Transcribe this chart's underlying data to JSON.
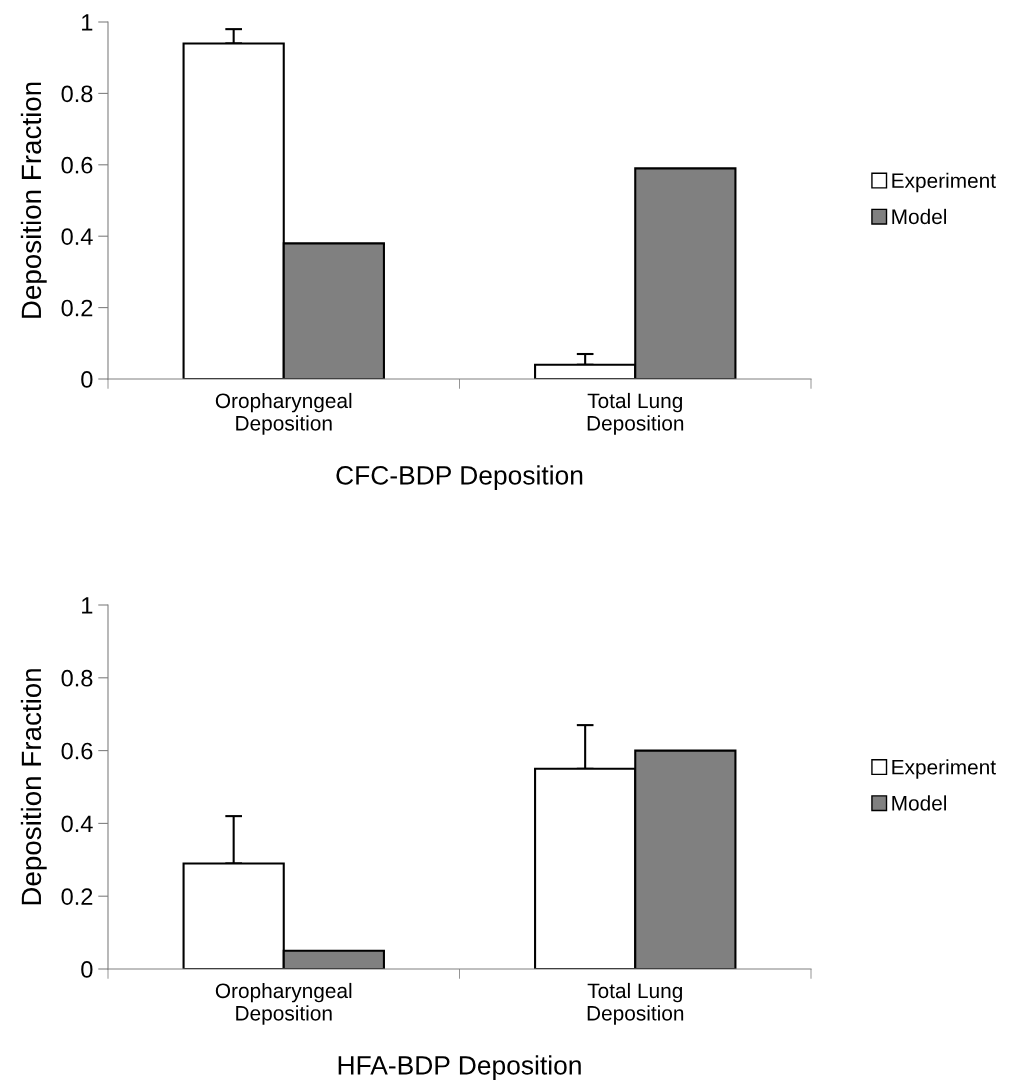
{
  "chart_data": [
    {
      "type": "bar",
      "xlabel": "CFC-BDP Deposition",
      "ylabel": "Deposition Fraction",
      "categories": [
        "Oropharyngeal\nDeposition",
        "Total Lung\nDeposition"
      ],
      "series": [
        {
          "name": "Experiment",
          "color": "#ffffff",
          "values": [
            0.94,
            0.04
          ],
          "errors": [
            [
              0.94,
              0.98
            ],
            [
              0.04,
              0.07
            ]
          ]
        },
        {
          "name": "Model",
          "color": "#808080",
          "values": [
            0.38,
            0.59
          ]
        }
      ],
      "ylim": [
        0,
        1
      ],
      "yticks": [
        0,
        0.2,
        0.4,
        0.6,
        0.8,
        1
      ],
      "grid": false,
      "legend": "right"
    },
    {
      "type": "bar",
      "xlabel": "HFA-BDP Deposition",
      "ylabel": "Deposition Fraction",
      "categories": [
        "Oropharyngeal\nDeposition",
        "Total Lung\nDeposition"
      ],
      "series": [
        {
          "name": "Experiment",
          "color": "#ffffff",
          "values": [
            0.29,
            0.55
          ],
          "errors": [
            [
              0.29,
              0.42
            ],
            [
              0.55,
              0.67
            ]
          ]
        },
        {
          "name": "Model",
          "color": "#808080",
          "values": [
            0.05,
            0.6
          ]
        }
      ],
      "ylim": [
        0,
        1
      ],
      "yticks": [
        0,
        0.2,
        0.4,
        0.6,
        0.8,
        1
      ],
      "grid": false,
      "legend": "right"
    }
  ]
}
